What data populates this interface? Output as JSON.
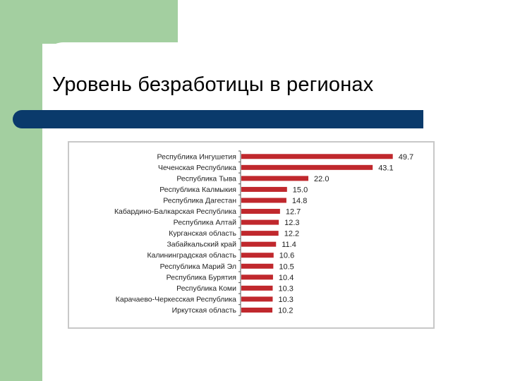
{
  "slide": {
    "title": "Уровень безработицы в регионах"
  },
  "colors": {
    "green": "#a3cfa0",
    "navy": "#0a3a6b",
    "bar": "#c0282d"
  },
  "chart_data": {
    "type": "bar",
    "orientation": "horizontal",
    "categories": [
      "Республика Ингушетия",
      "Чеченская Республика",
      "Республика Тыва",
      "Республика Калмыкия",
      "Республика Дагестан",
      "Кабардино-Балкарская Республика",
      "Республика Алтай",
      "Курганская область",
      "Забайкальский край",
      "Калининградская область",
      "Республика Марий Эл",
      "Республика Бурятия",
      "Республика Коми",
      "Карачаево-Черкесская Республика",
      "Иркутская область"
    ],
    "values": [
      49.7,
      43.1,
      22.0,
      15.0,
      14.8,
      12.7,
      12.3,
      12.2,
      11.4,
      10.6,
      10.5,
      10.4,
      10.3,
      10.3,
      10.2
    ],
    "value_labels": [
      "49.7",
      "43.1",
      "22.0",
      "15.0",
      "14.8",
      "12.7",
      "12.3",
      "12.2",
      "11.4",
      "10.6",
      "10.5",
      "10.4",
      "10.3",
      "10.3",
      "10.2"
    ],
    "xlim": [
      0,
      55
    ],
    "grid": false,
    "legend": "none"
  }
}
